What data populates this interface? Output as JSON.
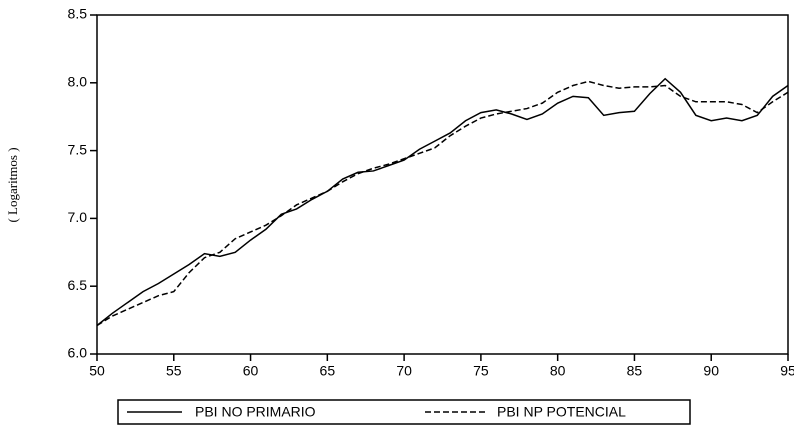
{
  "chart_data": {
    "type": "line",
    "y_label": "( Logaritmos )",
    "x": [
      50,
      51,
      52,
      53,
      54,
      55,
      56,
      57,
      58,
      59,
      60,
      61,
      62,
      63,
      64,
      65,
      66,
      67,
      68,
      69,
      70,
      71,
      72,
      73,
      74,
      75,
      76,
      77,
      78,
      79,
      80,
      81,
      82,
      83,
      84,
      85,
      86,
      87,
      88,
      89,
      90,
      91,
      92,
      93,
      94,
      95
    ],
    "series": [
      {
        "name": "PBI NO PRIMARIO",
        "color": "#000000",
        "dash": "solid",
        "values": [
          6.21,
          6.3,
          6.38,
          6.46,
          6.52,
          6.59,
          6.66,
          6.74,
          6.72,
          6.75,
          6.84,
          6.92,
          7.03,
          7.07,
          7.14,
          7.2,
          7.29,
          7.34,
          7.35,
          7.39,
          7.43,
          7.51,
          7.57,
          7.63,
          7.72,
          7.78,
          7.8,
          7.77,
          7.73,
          7.77,
          7.85,
          7.9,
          7.89,
          7.76,
          7.78,
          7.79,
          7.92,
          8.03,
          7.93,
          7.76,
          7.72,
          7.74,
          7.72,
          7.76,
          7.9,
          7.98
        ]
      },
      {
        "name": "PBI NP POTENCIAL",
        "color": "#000000",
        "dash": "dashed",
        "values": [
          6.21,
          6.28,
          6.33,
          6.38,
          6.43,
          6.46,
          6.6,
          6.71,
          6.75,
          6.85,
          6.9,
          6.95,
          7.02,
          7.1,
          7.15,
          7.2,
          7.27,
          7.33,
          7.37,
          7.4,
          7.44,
          7.48,
          7.52,
          7.61,
          7.68,
          7.74,
          7.77,
          7.79,
          7.81,
          7.85,
          7.93,
          7.98,
          8.01,
          7.98,
          7.96,
          7.97,
          7.97,
          7.98,
          7.9,
          7.86,
          7.86,
          7.86,
          7.84,
          7.78,
          7.86,
          7.93
        ]
      }
    ],
    "xlim": [
      50,
      95
    ],
    "xticks": [
      50,
      55,
      60,
      65,
      70,
      75,
      80,
      85,
      90,
      95
    ],
    "ylim": [
      6.0,
      8.5
    ],
    "yticks": [
      {
        "value": 6.0,
        "label": "6.0"
      },
      6.5,
      {
        "value": 7.0,
        "label": "7.0"
      },
      7.5,
      {
        "value": 8.0,
        "label": "8.0"
      },
      8.5
    ],
    "grid": false,
    "legend": "bottom"
  }
}
